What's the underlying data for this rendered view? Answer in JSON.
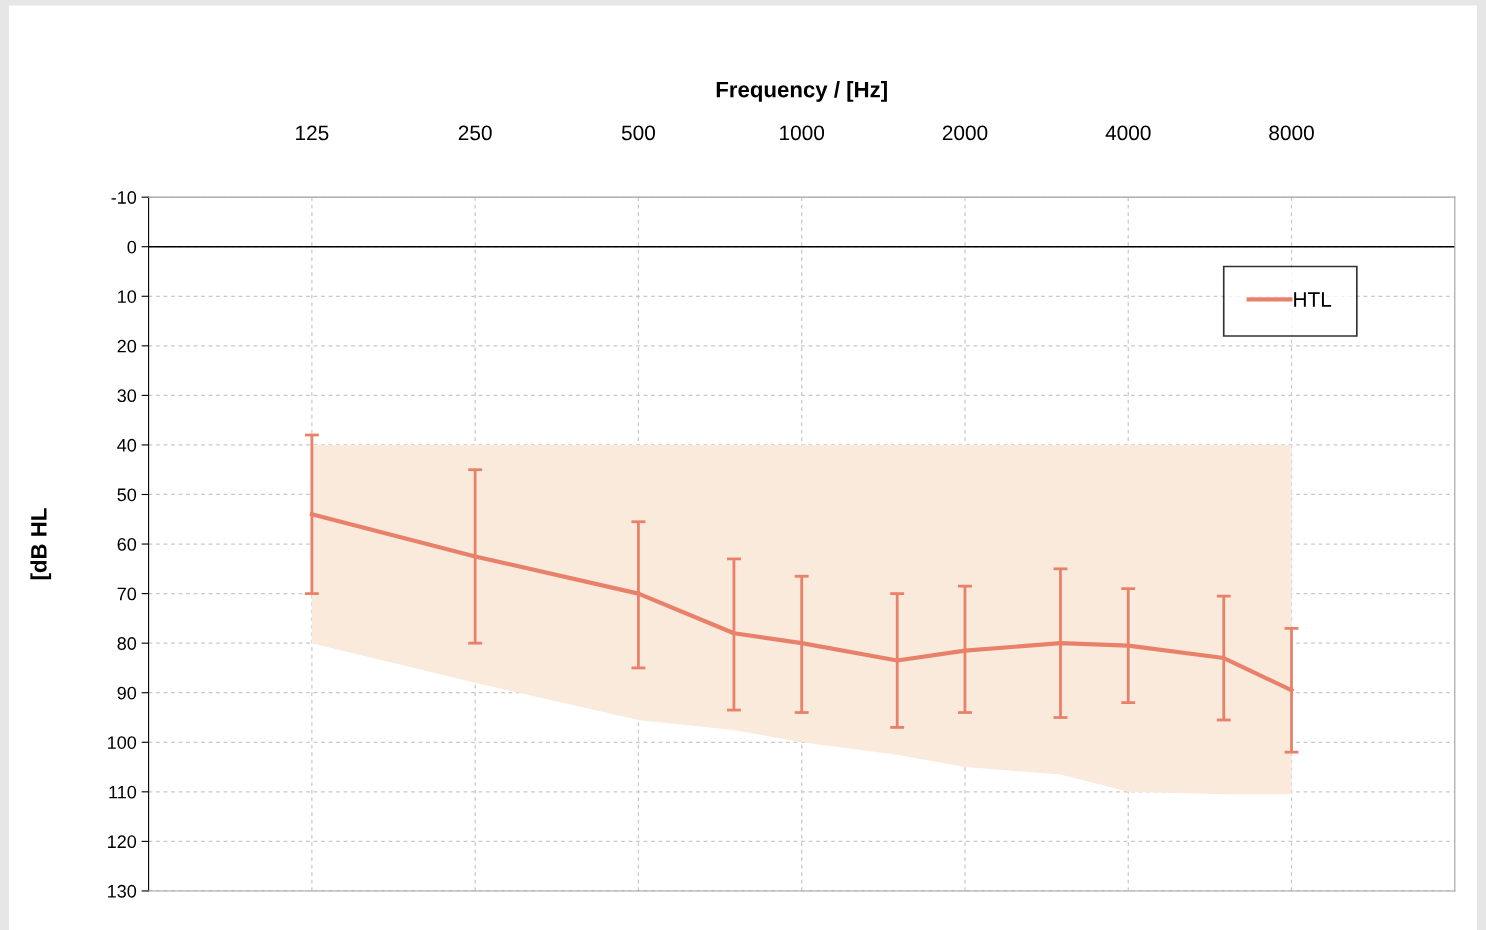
{
  "chart_data": {
    "type": "line",
    "xlabel": "Frequency / [Hz]",
    "ylabel": "[dB HL",
    "log": "x",
    "xlim": [
      62.5,
      16000
    ],
    "xticks": [
      125,
      250,
      500,
      1000,
      2000,
      4000,
      8000
    ],
    "ylim": [
      130,
      -10
    ],
    "yticks": [
      -10,
      0,
      10,
      20,
      30,
      40,
      50,
      60,
      70,
      80,
      90,
      100,
      110,
      120,
      130
    ],
    "grid": true,
    "legend": "top right",
    "ref_lines": [
      {
        "axis": "y",
        "value": 0,
        "color": "#000000",
        "line_style": "solid"
      }
    ],
    "series": [
      {
        "name": "HTL",
        "lower": [
          80,
          88,
          95.5,
          97.5,
          100,
          102.5,
          105,
          106.5,
          110,
          110.5,
          110.5
        ],
        "upper": [
          40,
          40,
          40,
          40,
          40,
          40,
          40,
          40,
          40,
          40,
          40
        ],
        "color": "#e8806a",
        "marker": "none",
        "line_style": "solid",
        "x": [
          125,
          250,
          500,
          750,
          1000,
          1500,
          2000,
          3000,
          4000,
          6000,
          8000
        ],
        "values": [
          54,
          62.5,
          70,
          78,
          80,
          83.5,
          81.5,
          80,
          80.5,
          83,
          89.5
        ],
        "errors": [
          [
            38,
            70
          ],
          [
            45,
            80
          ],
          [
            55.5,
            85
          ],
          [
            63,
            93.5
          ],
          [
            66.5,
            94
          ],
          [
            70,
            97
          ],
          [
            68.5,
            94
          ],
          [
            65,
            95
          ],
          [
            69,
            92
          ],
          [
            70.5,
            95.5
          ],
          [
            77,
            102
          ]
        ]
      }
    ]
  }
}
